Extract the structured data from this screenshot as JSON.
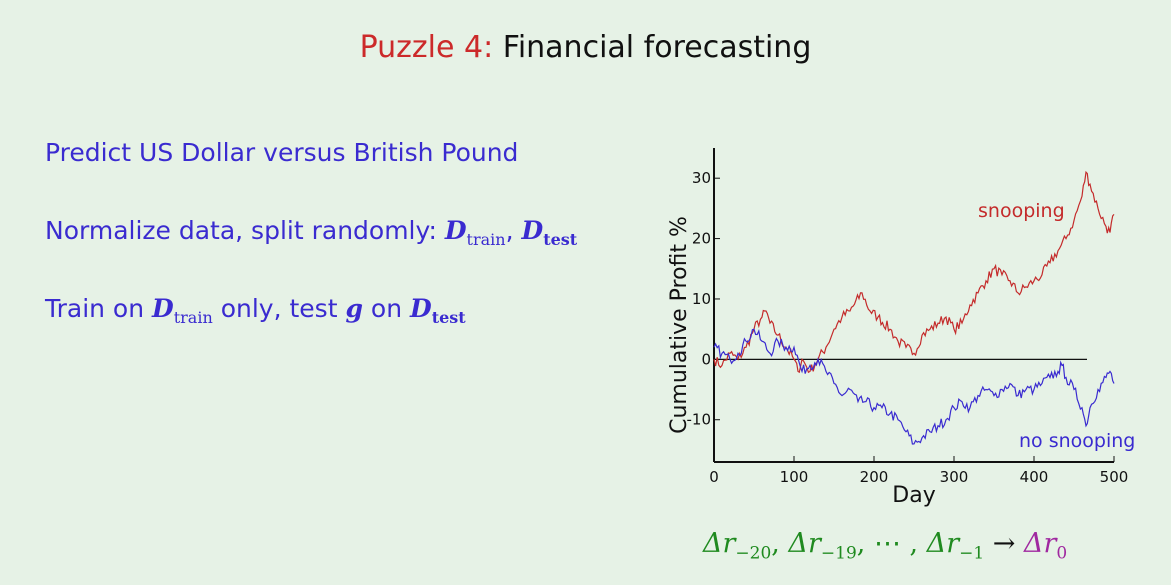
{
  "slide": {
    "title_lead": "Puzzle 4:",
    "title_rest": "Financial forecasting"
  },
  "bullets": {
    "b1": "Predict US Dollar versus British Pound",
    "b2_text": "Normalize data, split randomly:",
    "b3_a": "Train on",
    "b3_b": "only,  test",
    "b3_c": "on",
    "D": "D",
    "g": "g",
    "sub_train": "train",
    "sub_test": "test",
    "comma": ","
  },
  "formula": {
    "delta_r": "Δr",
    "s20": "−20",
    "s19": "−19",
    "dots": ", ⋯ ,",
    "s1": "−1",
    "arrow": "→",
    "s0": "0",
    "comma": ","
  },
  "colors": {
    "title_accent": "#cc2a2a",
    "text_blue": "#3a2bd0",
    "snooping": "#c42b2b",
    "no_snooping": "#3a2bd0",
    "formula_green": "#1f8a1f",
    "formula_target": "#a028a0"
  },
  "chart_data": {
    "type": "line",
    "xlabel": "Day",
    "ylabel": "Cumulative Profit %",
    "xlim": [
      0,
      500
    ],
    "ylim": [
      -17,
      35
    ],
    "xticks": [
      0,
      100,
      200,
      300,
      400,
      500
    ],
    "yticks": [
      -10,
      0,
      10,
      20,
      30
    ],
    "baseline": 0,
    "series": [
      {
        "name": "snooping",
        "color": "#c42b2b",
        "points": [
          [
            0,
            0
          ],
          [
            10,
            -1
          ],
          [
            20,
            1
          ],
          [
            30,
            0
          ],
          [
            40,
            2
          ],
          [
            50,
            5
          ],
          [
            60,
            7
          ],
          [
            65,
            8
          ],
          [
            70,
            6
          ],
          [
            80,
            4
          ],
          [
            90,
            2
          ],
          [
            100,
            0
          ],
          [
            105,
            -2
          ],
          [
            110,
            0
          ],
          [
            120,
            -2
          ],
          [
            130,
            0
          ],
          [
            140,
            2
          ],
          [
            150,
            5
          ],
          [
            160,
            7
          ],
          [
            170,
            8
          ],
          [
            185,
            11
          ],
          [
            195,
            8
          ],
          [
            205,
            7
          ],
          [
            220,
            5
          ],
          [
            230,
            3
          ],
          [
            240,
            2
          ],
          [
            250,
            1
          ],
          [
            260,
            4
          ],
          [
            270,
            5
          ],
          [
            280,
            6
          ],
          [
            290,
            7
          ],
          [
            300,
            5
          ],
          [
            310,
            6
          ],
          [
            320,
            9
          ],
          [
            330,
            11
          ],
          [
            340,
            13
          ],
          [
            350,
            15
          ],
          [
            360,
            14
          ],
          [
            370,
            13
          ],
          [
            380,
            11
          ],
          [
            390,
            12
          ],
          [
            400,
            13
          ],
          [
            410,
            14
          ],
          [
            420,
            16
          ],
          [
            430,
            18
          ],
          [
            440,
            20
          ],
          [
            450,
            23
          ],
          [
            460,
            27
          ],
          [
            465,
            31
          ],
          [
            470,
            29
          ],
          [
            480,
            25
          ],
          [
            490,
            22
          ],
          [
            495,
            21
          ],
          [
            500,
            24
          ]
        ]
      },
      {
        "name": "no snooping",
        "color": "#3a2bd0",
        "points": [
          [
            0,
            2
          ],
          [
            10,
            1
          ],
          [
            20,
            0
          ],
          [
            30,
            1
          ],
          [
            40,
            3
          ],
          [
            50,
            5
          ],
          [
            60,
            3
          ],
          [
            70,
            1
          ],
          [
            80,
            3
          ],
          [
            90,
            2
          ],
          [
            100,
            2
          ],
          [
            110,
            -2
          ],
          [
            120,
            -1
          ],
          [
            130,
            0
          ],
          [
            140,
            -2
          ],
          [
            150,
            -4
          ],
          [
            160,
            -6
          ],
          [
            170,
            -5
          ],
          [
            180,
            -7
          ],
          [
            190,
            -7
          ],
          [
            200,
            -8
          ],
          [
            210,
            -8
          ],
          [
            220,
            -9
          ],
          [
            230,
            -10
          ],
          [
            240,
            -12
          ],
          [
            250,
            -14
          ],
          [
            260,
            -13
          ],
          [
            270,
            -12
          ],
          [
            280,
            -11
          ],
          [
            290,
            -10
          ],
          [
            300,
            -8
          ],
          [
            310,
            -7
          ],
          [
            320,
            -8
          ],
          [
            330,
            -6
          ],
          [
            340,
            -5
          ],
          [
            350,
            -6
          ],
          [
            360,
            -5
          ],
          [
            370,
            -4
          ],
          [
            380,
            -6
          ],
          [
            390,
            -5
          ],
          [
            400,
            -5
          ],
          [
            410,
            -4
          ],
          [
            420,
            -3
          ],
          [
            430,
            -2
          ],
          [
            435,
            -1
          ],
          [
            440,
            -3
          ],
          [
            450,
            -5
          ],
          [
            460,
            -8
          ],
          [
            465,
            -11
          ],
          [
            470,
            -8
          ],
          [
            480,
            -5
          ],
          [
            490,
            -3
          ],
          [
            495,
            -2
          ],
          [
            500,
            -4
          ]
        ]
      }
    ]
  }
}
